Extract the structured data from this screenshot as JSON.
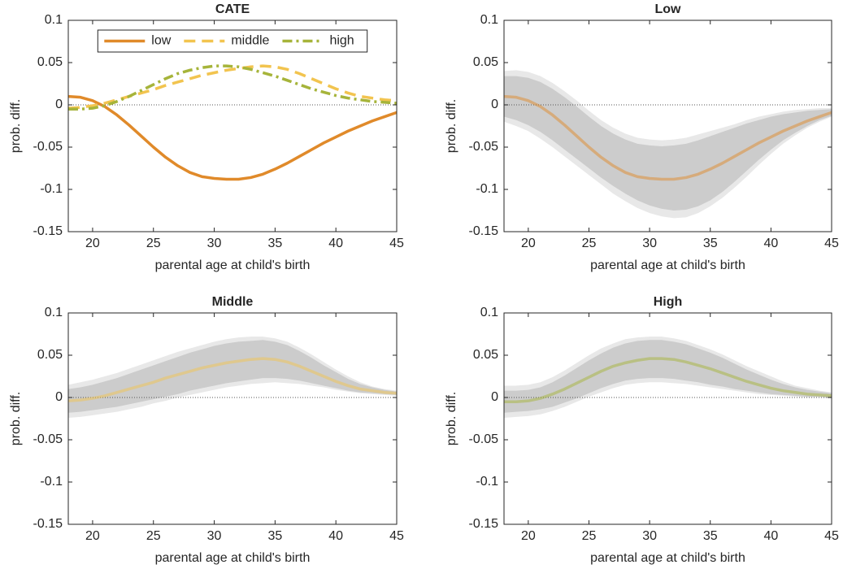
{
  "chart_data": [
    {
      "type": "line",
      "title": "CATE",
      "xlabel": "parental age at child's birth",
      "ylabel": "prob. diff.",
      "x": [
        18,
        19,
        20,
        21,
        22,
        23,
        24,
        25,
        26,
        27,
        28,
        29,
        30,
        31,
        32,
        33,
        34,
        35,
        36,
        37,
        38,
        39,
        40,
        41,
        42,
        43,
        44,
        45
      ],
      "xlim": [
        18,
        45
      ],
      "ylim": [
        -0.15,
        0.1
      ],
      "xticks": [
        20,
        25,
        30,
        35,
        40,
        45
      ],
      "yticks": [
        0.1,
        0.05,
        0,
        -0.05,
        -0.1,
        -0.15
      ],
      "hline": 0,
      "legend": "north",
      "series": [
        {
          "name": "low",
          "color": "#e08a2a",
          "dash": "solid",
          "values": [
            0.01,
            0.009,
            0.005,
            -0.002,
            -0.012,
            -0.024,
            -0.037,
            -0.05,
            -0.062,
            -0.072,
            -0.08,
            -0.085,
            -0.087,
            -0.088,
            -0.088,
            -0.086,
            -0.082,
            -0.076,
            -0.069,
            -0.061,
            -0.053,
            -0.045,
            -0.038,
            -0.031,
            -0.025,
            -0.019,
            -0.014,
            -0.009
          ]
        },
        {
          "name": "middle",
          "color": "#f2c44f",
          "dash": "dashed",
          "values": [
            -0.004,
            -0.003,
            -0.001,
            0.002,
            0.006,
            0.01,
            0.014,
            0.018,
            0.023,
            0.027,
            0.031,
            0.035,
            0.038,
            0.041,
            0.043,
            0.045,
            0.046,
            0.045,
            0.042,
            0.037,
            0.031,
            0.025,
            0.019,
            0.014,
            0.01,
            0.008,
            0.006,
            0.005
          ]
        },
        {
          "name": "high",
          "color": "#a6b43a",
          "dash": "dashdot",
          "values": [
            -0.005,
            -0.005,
            -0.004,
            -0.001,
            0.004,
            0.01,
            0.017,
            0.024,
            0.031,
            0.037,
            0.041,
            0.044,
            0.046,
            0.046,
            0.045,
            0.042,
            0.038,
            0.034,
            0.029,
            0.024,
            0.019,
            0.015,
            0.011,
            0.008,
            0.006,
            0.004,
            0.003,
            0.002
          ]
        }
      ]
    },
    {
      "type": "line",
      "title": "Low",
      "xlabel": "parental age at child's birth",
      "ylabel": "prob. diff.",
      "x": [
        18,
        19,
        20,
        21,
        22,
        23,
        24,
        25,
        26,
        27,
        28,
        29,
        30,
        31,
        32,
        33,
        34,
        35,
        36,
        37,
        38,
        39,
        40,
        41,
        42,
        43,
        44,
        45
      ],
      "xlim": [
        18,
        45
      ],
      "ylim": [
        -0.15,
        0.1
      ],
      "xticks": [
        20,
        25,
        30,
        35,
        40,
        45
      ],
      "yticks": [
        0.1,
        0.05,
        0,
        -0.05,
        -0.1,
        -0.15
      ],
      "hline": 0,
      "line_opacity": 0.5,
      "intervals": [
        {
          "color": "#e8e8e8",
          "lower": [
            -0.02,
            -0.025,
            -0.031,
            -0.04,
            -0.05,
            -0.061,
            -0.072,
            -0.083,
            -0.094,
            -0.105,
            -0.114,
            -0.122,
            -0.128,
            -0.132,
            -0.134,
            -0.133,
            -0.128,
            -0.12,
            -0.11,
            -0.098,
            -0.085,
            -0.071,
            -0.058,
            -0.046,
            -0.036,
            -0.027,
            -0.02,
            -0.014
          ],
          "upper": [
            0.04,
            0.041,
            0.039,
            0.034,
            0.026,
            0.016,
            0.005,
            -0.007,
            -0.018,
            -0.027,
            -0.034,
            -0.039,
            -0.041,
            -0.042,
            -0.041,
            -0.039,
            -0.035,
            -0.031,
            -0.027,
            -0.023,
            -0.018,
            -0.014,
            -0.011,
            -0.008,
            -0.006,
            -0.005,
            -0.004,
            -0.004
          ]
        },
        {
          "color": "#cccccc",
          "lower": [
            -0.014,
            -0.018,
            -0.024,
            -0.032,
            -0.042,
            -0.053,
            -0.064,
            -0.075,
            -0.086,
            -0.096,
            -0.105,
            -0.113,
            -0.119,
            -0.123,
            -0.125,
            -0.124,
            -0.12,
            -0.113,
            -0.103,
            -0.091,
            -0.078,
            -0.065,
            -0.053,
            -0.042,
            -0.033,
            -0.025,
            -0.018,
            -0.013
          ],
          "upper": [
            0.034,
            0.034,
            0.032,
            0.027,
            0.019,
            0.009,
            -0.002,
            -0.014,
            -0.025,
            -0.034,
            -0.041,
            -0.046,
            -0.048,
            -0.049,
            -0.048,
            -0.046,
            -0.042,
            -0.037,
            -0.032,
            -0.027,
            -0.022,
            -0.018,
            -0.014,
            -0.011,
            -0.009,
            -0.007,
            -0.006,
            -0.005
          ]
        }
      ],
      "series": [
        {
          "color": "#e08a2a",
          "dash": "solid",
          "values": [
            0.01,
            0.009,
            0.005,
            -0.002,
            -0.012,
            -0.024,
            -0.037,
            -0.05,
            -0.062,
            -0.072,
            -0.08,
            -0.085,
            -0.087,
            -0.088,
            -0.088,
            -0.086,
            -0.082,
            -0.076,
            -0.069,
            -0.061,
            -0.053,
            -0.045,
            -0.038,
            -0.031,
            -0.025,
            -0.019,
            -0.014,
            -0.009
          ]
        }
      ]
    },
    {
      "type": "line",
      "title": "Middle",
      "xlabel": "parental age at child's birth",
      "ylabel": "prob. diff.",
      "x": [
        18,
        19,
        20,
        21,
        22,
        23,
        24,
        25,
        26,
        27,
        28,
        29,
        30,
        31,
        32,
        33,
        34,
        35,
        36,
        37,
        38,
        39,
        40,
        41,
        42,
        43,
        44,
        45
      ],
      "xlim": [
        18,
        45
      ],
      "ylim": [
        -0.15,
        0.1
      ],
      "xticks": [
        20,
        25,
        30,
        35,
        40,
        45
      ],
      "yticks": [
        0.1,
        0.05,
        0,
        -0.05,
        -0.1,
        -0.15
      ],
      "hline": 0,
      "line_opacity": 0.5,
      "intervals": [
        {
          "color": "#e8e8e8",
          "lower": [
            -0.024,
            -0.023,
            -0.021,
            -0.019,
            -0.017,
            -0.014,
            -0.011,
            -0.007,
            -0.004,
            0,
            0.003,
            0.006,
            0.009,
            0.012,
            0.014,
            0.016,
            0.017,
            0.018,
            0.017,
            0.016,
            0.014,
            0.012,
            0.009,
            0.007,
            0.005,
            0.004,
            0.003,
            0.002
          ],
          "upper": [
            0.015,
            0.018,
            0.021,
            0.025,
            0.029,
            0.034,
            0.039,
            0.044,
            0.049,
            0.054,
            0.058,
            0.062,
            0.066,
            0.069,
            0.071,
            0.072,
            0.072,
            0.07,
            0.066,
            0.059,
            0.051,
            0.042,
            0.033,
            0.025,
            0.018,
            0.013,
            0.01,
            0.008
          ]
        },
        {
          "color": "#cccccc",
          "lower": [
            -0.018,
            -0.017,
            -0.015,
            -0.013,
            -0.011,
            -0.008,
            -0.005,
            -0.002,
            0.001,
            0.004,
            0.008,
            0.011,
            0.014,
            0.017,
            0.019,
            0.021,
            0.023,
            0.023,
            0.022,
            0.02,
            0.017,
            0.014,
            0.011,
            0.008,
            0.006,
            0.005,
            0.004,
            0.003
          ],
          "upper": [
            0.01,
            0.012,
            0.015,
            0.019,
            0.023,
            0.028,
            0.033,
            0.038,
            0.043,
            0.048,
            0.053,
            0.057,
            0.061,
            0.064,
            0.066,
            0.067,
            0.068,
            0.066,
            0.062,
            0.055,
            0.047,
            0.038,
            0.03,
            0.022,
            0.016,
            0.012,
            0.009,
            0.007
          ]
        }
      ],
      "series": [
        {
          "color": "#f2c44f",
          "dash": "solid",
          "values": [
            -0.004,
            -0.003,
            -0.001,
            0.002,
            0.006,
            0.01,
            0.014,
            0.018,
            0.023,
            0.027,
            0.031,
            0.035,
            0.038,
            0.041,
            0.043,
            0.045,
            0.046,
            0.045,
            0.042,
            0.037,
            0.031,
            0.025,
            0.019,
            0.014,
            0.01,
            0.008,
            0.006,
            0.005
          ]
        }
      ]
    },
    {
      "type": "line",
      "title": "High",
      "xlabel": "parental age at child's birth",
      "ylabel": "prob. diff.",
      "x": [
        18,
        19,
        20,
        21,
        22,
        23,
        24,
        25,
        26,
        27,
        28,
        29,
        30,
        31,
        32,
        33,
        34,
        35,
        36,
        37,
        38,
        39,
        40,
        41,
        42,
        43,
        44,
        45
      ],
      "xlim": [
        18,
        45
      ],
      "ylim": [
        -0.15,
        0.1
      ],
      "xticks": [
        20,
        25,
        30,
        35,
        40,
        45
      ],
      "yticks": [
        0.1,
        0.05,
        0,
        -0.05,
        -0.1,
        -0.15
      ],
      "hline": 0,
      "line_opacity": 0.5,
      "intervals": [
        {
          "color": "#e8e8e8",
          "lower": [
            -0.024,
            -0.023,
            -0.022,
            -0.02,
            -0.016,
            -0.011,
            -0.005,
            0.001,
            0.006,
            0.011,
            0.015,
            0.017,
            0.018,
            0.018,
            0.017,
            0.016,
            0.014,
            0.012,
            0.01,
            0.008,
            0.006,
            0.004,
            0.003,
            0.002,
            0.001,
            0,
            0,
            -0.001
          ],
          "upper": [
            0.014,
            0.014,
            0.015,
            0.018,
            0.024,
            0.032,
            0.041,
            0.05,
            0.058,
            0.064,
            0.069,
            0.071,
            0.072,
            0.072,
            0.07,
            0.067,
            0.062,
            0.057,
            0.051,
            0.044,
            0.037,
            0.031,
            0.025,
            0.019,
            0.014,
            0.011,
            0.008,
            0.006
          ]
        },
        {
          "color": "#cccccc",
          "lower": [
            -0.018,
            -0.017,
            -0.016,
            -0.014,
            -0.011,
            -0.006,
            -0.001,
            0.005,
            0.011,
            0.016,
            0.02,
            0.022,
            0.023,
            0.023,
            0.022,
            0.02,
            0.018,
            0.015,
            0.013,
            0.01,
            0.008,
            0.006,
            0.004,
            0.003,
            0.002,
            0.001,
            0.001,
            0
          ],
          "upper": [
            0.008,
            0.008,
            0.009,
            0.012,
            0.018,
            0.026,
            0.035,
            0.044,
            0.052,
            0.059,
            0.064,
            0.067,
            0.068,
            0.068,
            0.066,
            0.063,
            0.058,
            0.053,
            0.047,
            0.04,
            0.033,
            0.027,
            0.021,
            0.016,
            0.012,
            0.009,
            0.007,
            0.005
          ]
        }
      ],
      "series": [
        {
          "color": "#a6b43a",
          "dash": "solid",
          "values": [
            -0.005,
            -0.005,
            -0.004,
            -0.001,
            0.004,
            0.01,
            0.017,
            0.024,
            0.031,
            0.037,
            0.041,
            0.044,
            0.046,
            0.046,
            0.045,
            0.042,
            0.038,
            0.034,
            0.029,
            0.024,
            0.019,
            0.015,
            0.011,
            0.008,
            0.006,
            0.004,
            0.003,
            0.002
          ]
        }
      ]
    }
  ]
}
